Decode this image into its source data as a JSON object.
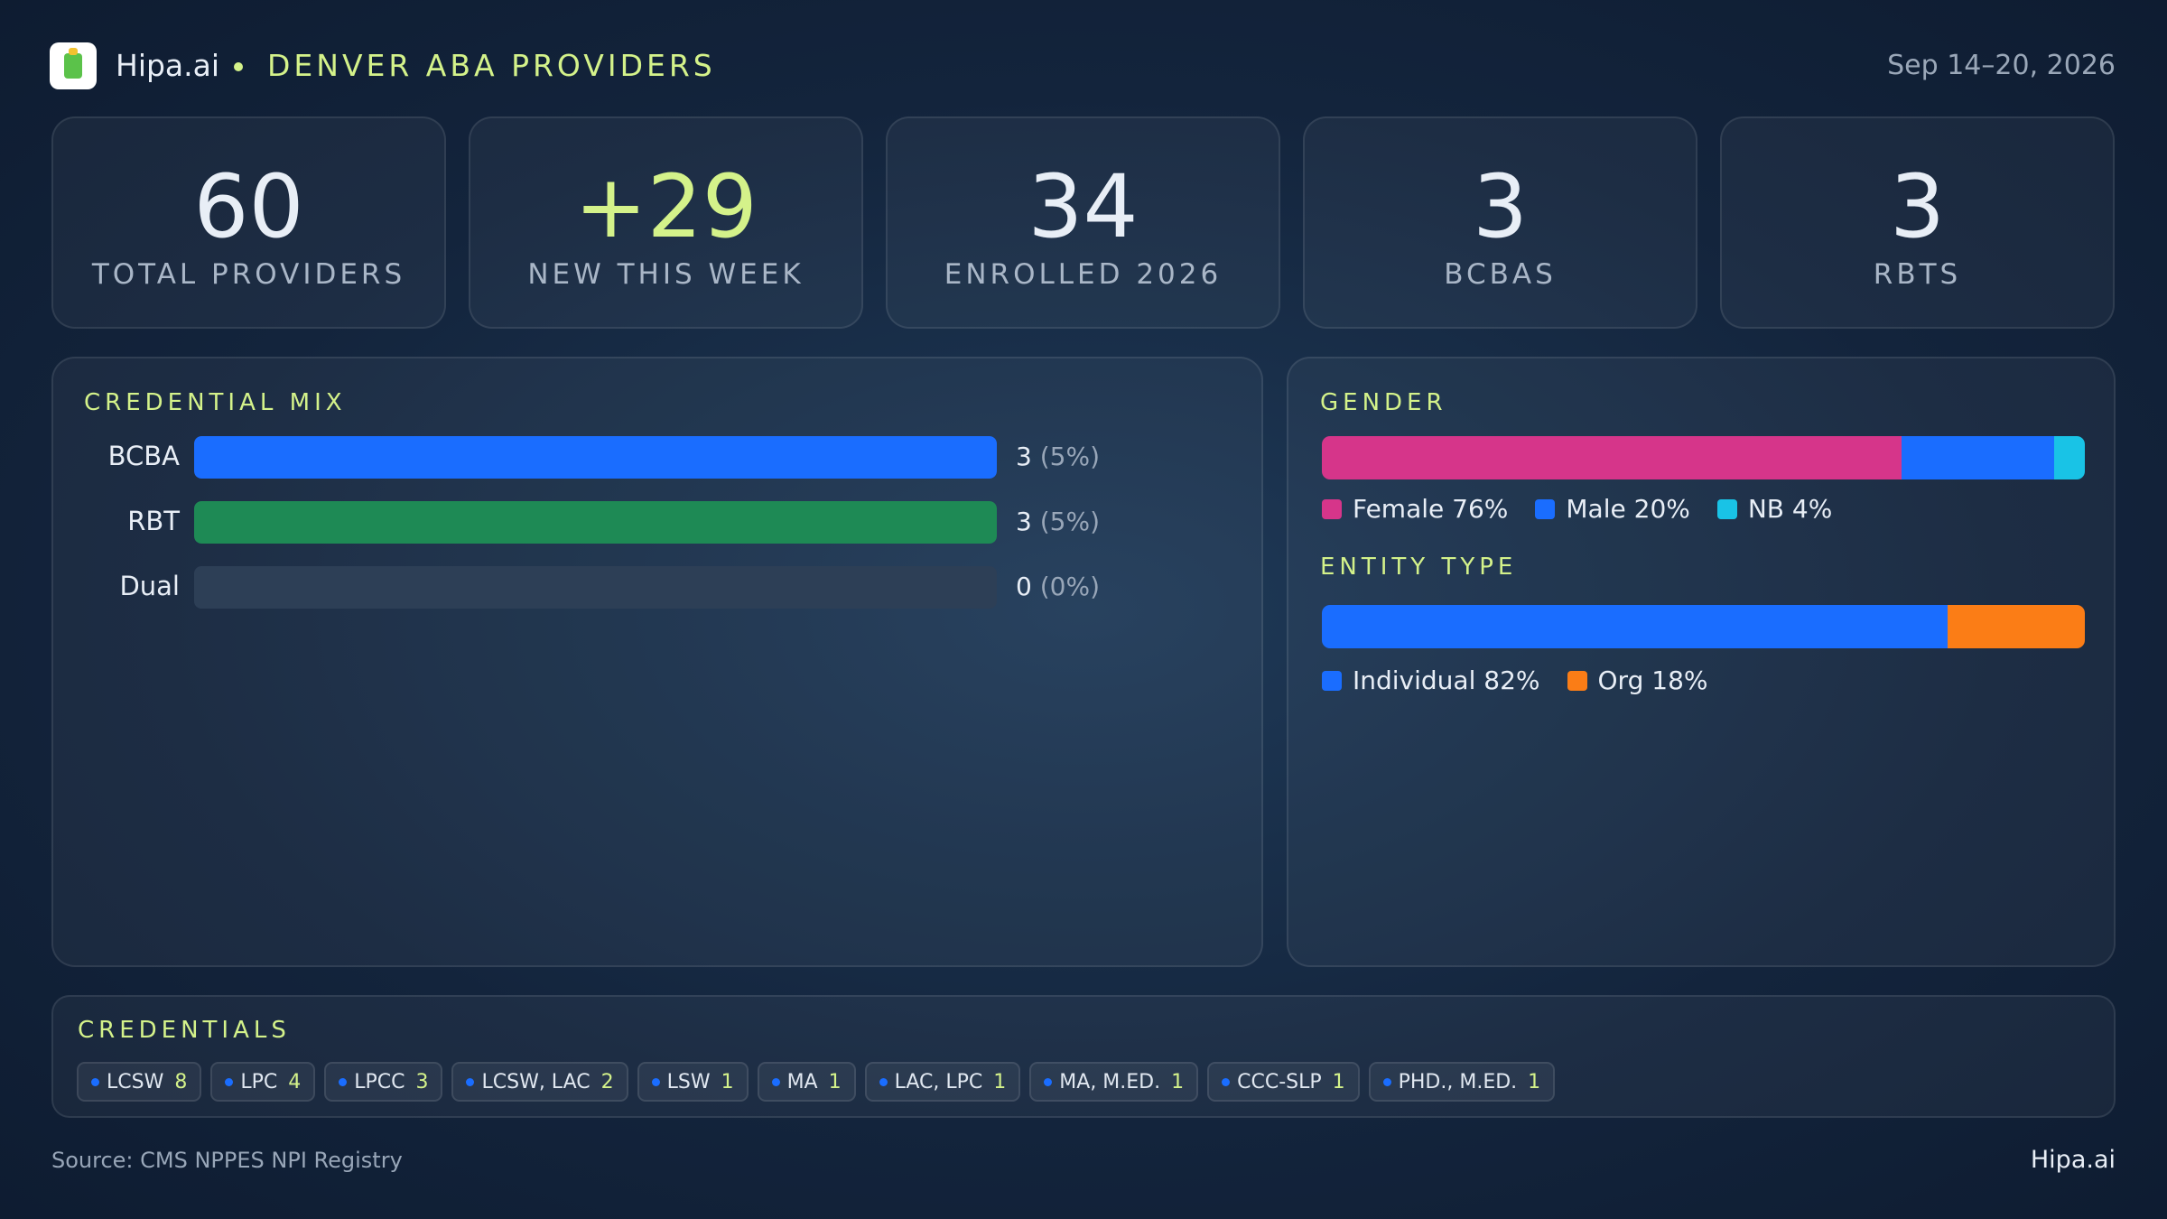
{
  "header": {
    "brand": "Hipa.ai",
    "title": "DENVER ABA PROVIDERS",
    "date_range": "Sep 14–20, 2026"
  },
  "kpis": [
    {
      "value": 60,
      "label": "TOTAL PROVIDERS"
    },
    {
      "value": "+29",
      "label": "NEW THIS WEEK",
      "color": "#d4f28a"
    },
    {
      "value": 34,
      "label": "ENROLLED 2026"
    },
    {
      "value": 3,
      "label": "BCBAS"
    },
    {
      "value": 3,
      "label": "RBTS"
    }
  ],
  "credential_mix": {
    "title": "CREDENTIAL MIX",
    "rows": [
      {
        "name": "BCBA",
        "value": 3,
        "share_label": "(5%)",
        "color": "#1a6dff"
      },
      {
        "name": "RBT",
        "value": 3,
        "share_label": "(5%)",
        "color": "#1e8a55"
      },
      {
        "name": "Dual",
        "value": 0,
        "share_label": "(0%)",
        "color": "#8a5cf6"
      }
    ]
  },
  "gender": {
    "title": "GENDER",
    "segments": [
      {
        "name": "Female",
        "value": 76,
        "value_label": "76%",
        "color": "#d6358a"
      },
      {
        "name": "Male",
        "value": 20,
        "value_label": "20%",
        "color": "#1a6dff"
      },
      {
        "name": "NB",
        "value": 4,
        "value_label": "4%",
        "color": "#19c3e6"
      }
    ]
  },
  "entity_type": {
    "title": "ENTITY TYPE",
    "segments": [
      {
        "name": "Individual",
        "value": 82,
        "value_label": "82%",
        "color": "#1a6dff"
      },
      {
        "name": "Org",
        "value": 18,
        "value_label": "18%",
        "color": "#fb7d16"
      }
    ]
  },
  "credentials": {
    "title": "CREDENTIALS",
    "chips": [
      {
        "name": "LCSW",
        "count": 8
      },
      {
        "name": "LPC",
        "count": 4
      },
      {
        "name": "LPCC",
        "count": 3
      },
      {
        "name": "LCSW, LAC",
        "count": 2
      },
      {
        "name": "LSW",
        "count": 1
      },
      {
        "name": "MA",
        "count": 1
      },
      {
        "name": "LAC, LPC",
        "count": 1
      },
      {
        "name": "MA, M.ED.",
        "count": 1
      },
      {
        "name": "CCC-SLP",
        "count": 1
      },
      {
        "name": "PHD., M.ED.",
        "count": 1
      }
    ]
  },
  "footer": {
    "source": "Source: CMS NPPES NPI Registry",
    "brand": "Hipa.ai"
  }
}
